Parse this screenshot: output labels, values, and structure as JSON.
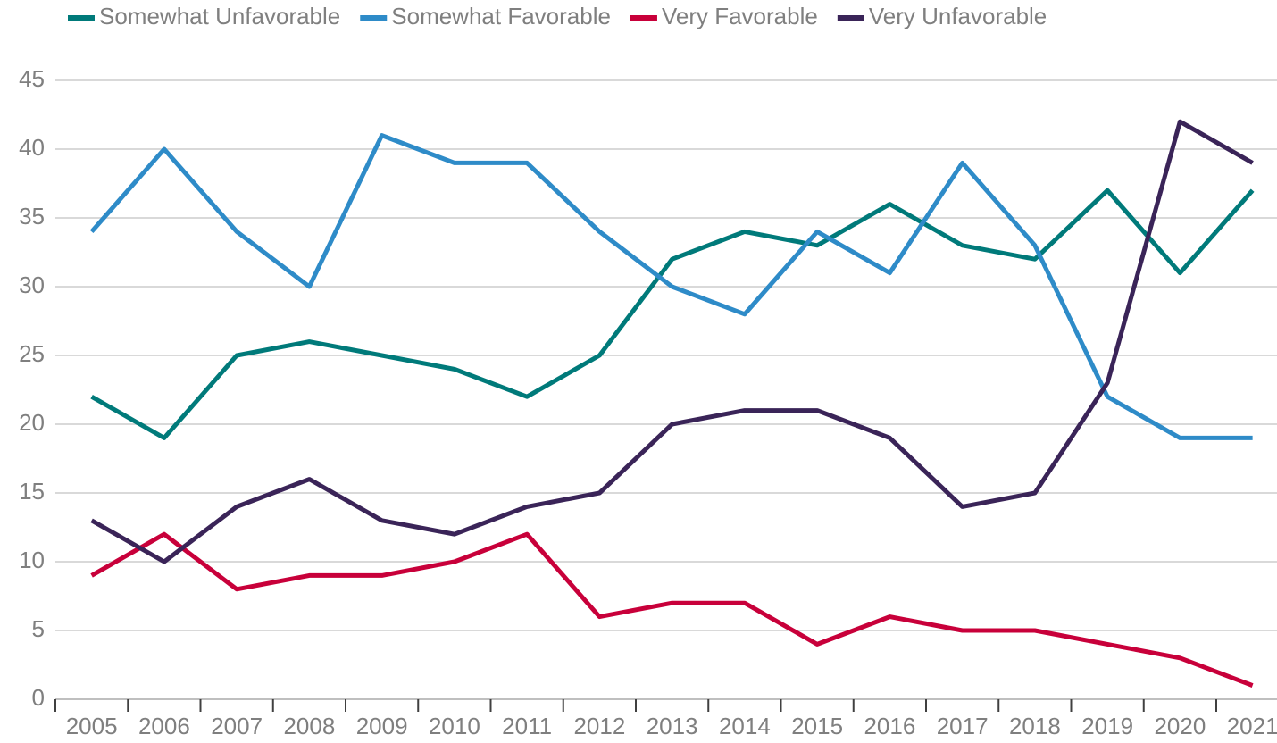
{
  "chart_data": {
    "type": "line",
    "categories": [
      "2005",
      "2006",
      "2007",
      "2008",
      "2009",
      "2010",
      "2011",
      "2012",
      "2013",
      "2014",
      "2015",
      "2016",
      "2017",
      "2018",
      "2019",
      "2020",
      "2021"
    ],
    "series": [
      {
        "name": "Somewhat Unfavorable",
        "color": "#007a7a",
        "values": [
          22,
          19,
          25,
          26,
          25,
          24,
          22,
          25,
          32,
          34,
          33,
          36,
          33,
          32,
          37,
          31,
          37
        ]
      },
      {
        "name": "Somewhat Favorable",
        "color": "#2e8bc8",
        "values": [
          34,
          40,
          34,
          30,
          41,
          39,
          39,
          34,
          30,
          28,
          34,
          31,
          39,
          33,
          22,
          19,
          19
        ]
      },
      {
        "name": "Very Favorable",
        "color": "#c8003a",
        "values": [
          9,
          12,
          8,
          9,
          9,
          10,
          12,
          6,
          7,
          7,
          4,
          6,
          5,
          5,
          4,
          3,
          1
        ]
      },
      {
        "name": "Very Unfavorable",
        "color": "#3a2458",
        "values": [
          13,
          10,
          14,
          16,
          13,
          12,
          14,
          15,
          20,
          21,
          21,
          19,
          14,
          15,
          23,
          42,
          39
        ]
      }
    ],
    "ylim": [
      0,
      45
    ],
    "yticks": [
      0,
      5,
      10,
      15,
      20,
      25,
      30,
      35,
      40,
      45
    ],
    "grid": true,
    "legend": "top"
  }
}
